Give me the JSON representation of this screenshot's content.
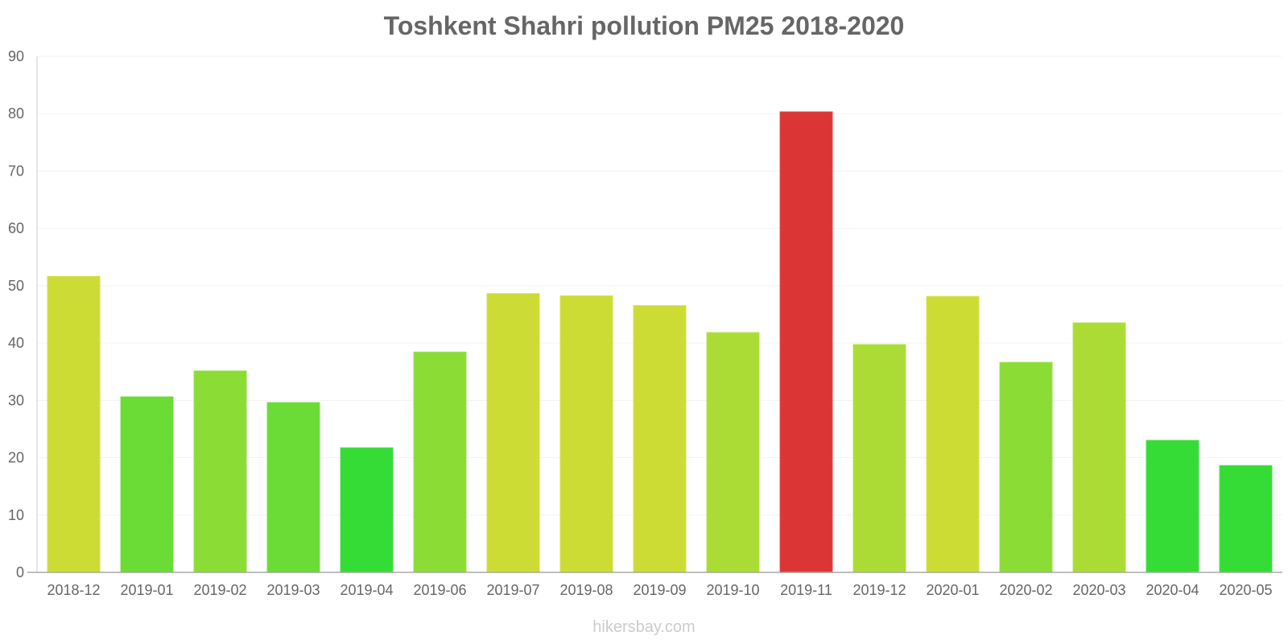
{
  "chart_data": {
    "type": "bar",
    "title": "Toshkent Shahri pollution PM25 2018-2020",
    "xlabel": "",
    "ylabel": "",
    "ylim": [
      0,
      90
    ],
    "yticks": [
      0,
      10,
      20,
      30,
      40,
      50,
      60,
      70,
      80,
      90
    ],
    "grid": true,
    "categories": [
      "2018-12",
      "2019-01",
      "2019-02",
      "2019-03",
      "2019-04",
      "2019-06",
      "2019-07",
      "2019-08",
      "2019-09",
      "2019-10",
      "2019-11",
      "2019-12",
      "2020-01",
      "2020-02",
      "2020-03",
      "2020-04",
      "2020-05"
    ],
    "values": [
      51.6,
      30.6,
      35.1,
      29.6,
      21.7,
      38.4,
      48.6,
      48.2,
      46.5,
      41.8,
      80.3,
      39.7,
      48.1,
      36.6,
      43.5,
      23.0,
      18.6
    ],
    "colors": [
      "#cddc35",
      "#6adc35",
      "#8bdc35",
      "#6adc35",
      "#35dc35",
      "#8bdc35",
      "#cddc35",
      "#cddc35",
      "#cddc35",
      "#abdc35",
      "#dc3535",
      "#abdc35",
      "#cddc35",
      "#8bdc35",
      "#abdc35",
      "#35dc35",
      "#35dc35"
    ]
  },
  "watermark": "hikersbay.com"
}
